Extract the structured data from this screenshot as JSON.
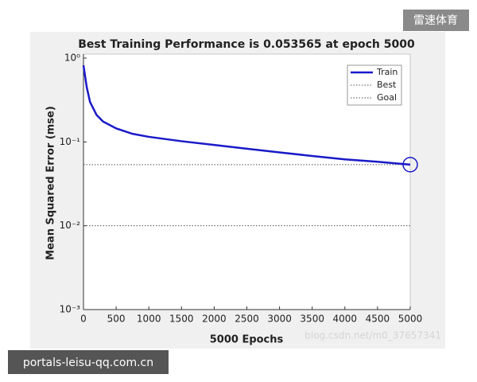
{
  "chart_data": {
    "type": "line",
    "title": "Best Training Performance is 0.053565 at epoch 5000",
    "xlabel": "5000 Epochs",
    "ylabel": "Mean Squared Error  (mse)",
    "series": [
      {
        "name": "Train",
        "color": "#1a1ac8",
        "x": [
          0,
          50,
          100,
          200,
          300,
          500,
          750,
          1000,
          1500,
          2000,
          2500,
          3000,
          3500,
          4000,
          4500,
          5000
        ],
        "values": [
          0.82,
          0.45,
          0.3,
          0.21,
          0.175,
          0.145,
          0.125,
          0.115,
          0.102,
          0.092,
          0.083,
          0.075,
          0.068,
          0.062,
          0.058,
          0.053565
        ]
      }
    ],
    "best": {
      "name": "Best",
      "value": 0.053565,
      "epoch": 5000,
      "color": "#555555"
    },
    "goal": {
      "name": "Goal",
      "value": 0.01,
      "color": "#555555"
    },
    "xlim": [
      0,
      5000
    ],
    "xticks": [
      0,
      500,
      1000,
      1500,
      2000,
      2500,
      3000,
      3500,
      4000,
      4500,
      5000
    ],
    "ylim": [
      0.001,
      1
    ],
    "yscale": "log",
    "yticks": [
      {
        "value": 1,
        "label": "10⁰"
      },
      {
        "value": 0.1,
        "label": "10⁻¹"
      },
      {
        "value": 0.01,
        "label": "10⁻²"
      },
      {
        "value": 0.001,
        "label": "10⁻³"
      }
    ],
    "legend": "upper right"
  },
  "watermarks": {
    "badge": "雷速体育",
    "site": "portals-leisu-qq.com.cn",
    "blog": "blog.csdn.net/m0_37657341"
  }
}
